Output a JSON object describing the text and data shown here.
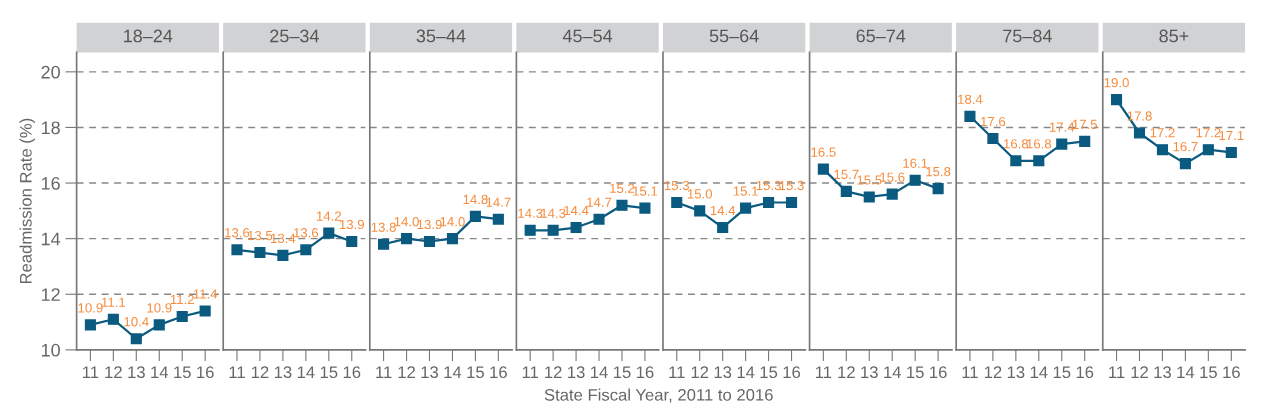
{
  "chart_data": [
    {
      "type": "line",
      "title": "18–24",
      "ylabel": "Readmission Rate (%)",
      "categories": [
        "11",
        "12",
        "13",
        "14",
        "15",
        "16"
      ],
      "series": [
        {
          "color": "#0b5a80",
          "values": [
            10.9,
            11.1,
            10.4,
            10.9,
            11.2,
            11.4
          ]
        }
      ],
      "ylim": [
        10,
        20.7
      ],
      "yticks": [
        10,
        12,
        14,
        16,
        18,
        20
      ],
      "grid": "y",
      "marker": "square",
      "data_labels": true
    },
    {
      "type": "line",
      "title": "25–34",
      "categories": [
        "11",
        "12",
        "13",
        "14",
        "15",
        "16"
      ],
      "series": [
        {
          "color": "#0b5a80",
          "values": [
            13.6,
            13.5,
            13.4,
            13.6,
            14.2,
            13.9
          ]
        }
      ],
      "ylim": [
        10,
        20.7
      ],
      "yticks": [
        10,
        12,
        14,
        16,
        18,
        20
      ],
      "tick_labels": "x",
      "grid": "y",
      "marker": "square",
      "data_labels": true
    },
    {
      "type": "line",
      "title": "35–44",
      "categories": [
        "11",
        "12",
        "13",
        "14",
        "15",
        "16"
      ],
      "series": [
        {
          "color": "#0b5a80",
          "values": [
            13.8,
            14.0,
            13.9,
            14.0,
            14.8,
            14.7
          ],
          "value_labels": [
            "13.8",
            "14.0",
            "13.9",
            "14.0",
            "14.8",
            "14.7"
          ]
        }
      ],
      "ylim": [
        10,
        20.7
      ],
      "yticks": [
        10,
        12,
        14,
        16,
        18,
        20
      ],
      "tick_labels": "x",
      "grid": "y",
      "marker": "square"
    },
    {
      "type": "line",
      "title": "45–54",
      "xlabel": "State Fiscal Year, 2011 to 2016",
      "categories": [
        "11",
        "12",
        "13",
        "14",
        "15",
        "16"
      ],
      "series": [
        {
          "color": "#0b5a80",
          "values": [
            14.3,
            14.3,
            14.4,
            14.7,
            15.2,
            15.1
          ]
        }
      ],
      "ylim": [
        10,
        20.7
      ],
      "yticks": [
        10,
        12,
        14,
        16,
        18,
        20
      ],
      "tick_labels": "x",
      "grid": "y",
      "marker": "square",
      "data_labels": true
    },
    {
      "type": "line",
      "title": "55–64",
      "categories": [
        "11",
        "12",
        "13",
        "14",
        "15",
        "16"
      ],
      "series": [
        {
          "color": "#0b5a80",
          "values": [
            15.3,
            15.0,
            14.4,
            15.1,
            15.3,
            15.3
          ],
          "value_labels": [
            "15.3",
            "15.0",
            "14.4",
            "15.1",
            "15.3",
            "15.3"
          ]
        }
      ],
      "ylim": [
        10,
        20.7
      ],
      "yticks": [
        10,
        12,
        14,
        16,
        18,
        20
      ],
      "tick_labels": "x",
      "grid": "y",
      "marker": "square"
    },
    {
      "type": "line",
      "title": "65–74",
      "categories": [
        "11",
        "12",
        "13",
        "14",
        "15",
        "16"
      ],
      "series": [
        {
          "color": "#0b5a80",
          "values": [
            16.5,
            15.7,
            15.5,
            15.6,
            16.1,
            15.8
          ]
        }
      ],
      "ylim": [
        10,
        20.7
      ],
      "yticks": [
        10,
        12,
        14,
        16,
        18,
        20
      ],
      "tick_labels": "x",
      "grid": "y",
      "marker": "square",
      "data_labels": true
    },
    {
      "type": "line",
      "title": "75–84",
      "categories": [
        "11",
        "12",
        "13",
        "14",
        "15",
        "16"
      ],
      "series": [
        {
          "color": "#0b5a80",
          "values": [
            18.4,
            17.6,
            16.8,
            16.8,
            17.4,
            17.5
          ]
        }
      ],
      "ylim": [
        10,
        20.7
      ],
      "yticks": [
        10,
        12,
        14,
        16,
        18,
        20
      ],
      "tick_labels": "x",
      "grid": "y",
      "marker": "square",
      "data_labels": true
    },
    {
      "type": "line",
      "title": "85+",
      "categories": [
        "11",
        "12",
        "13",
        "14",
        "15",
        "16"
      ],
      "series": [
        {
          "color": "#0b5a80",
          "values": [
            19.0,
            17.8,
            17.2,
            16.7,
            17.2,
            17.1
          ],
          "value_labels": [
            "19.0",
            "17.8",
            "17.2",
            "16.7",
            "17.2",
            "17.1"
          ]
        }
      ],
      "ylim": [
        10,
        20.7
      ],
      "yticks": [
        10,
        12,
        14,
        16,
        18,
        20
      ],
      "tick_labels": "x",
      "grid": "y",
      "marker": "square"
    }
  ]
}
